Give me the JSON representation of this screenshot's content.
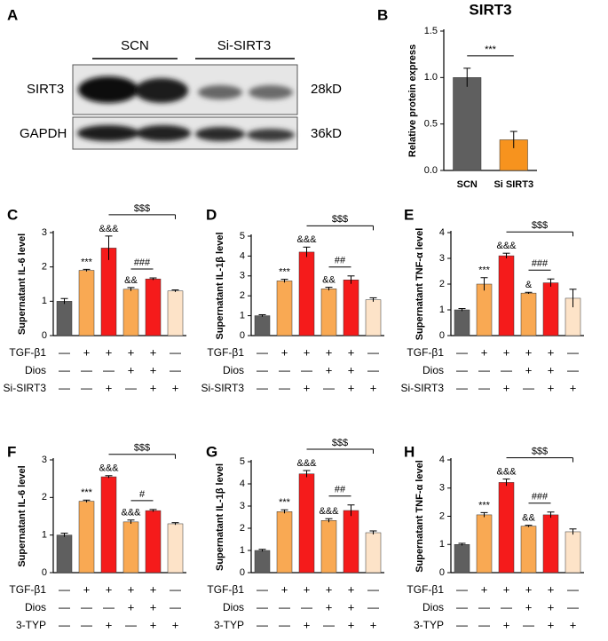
{
  "blot": {
    "panel": "A",
    "groups": [
      "SCN",
      "Si-SIRT3"
    ],
    "proteins": [
      {
        "name": "SIRT3",
        "size": "28kD"
      },
      {
        "name": "GAPDH",
        "size": "36kD"
      }
    ]
  },
  "chart_data": [
    {
      "type": "bar",
      "panel": "B",
      "title": "SIRT3",
      "y_label": "Relative protein express",
      "categories": [
        "SCN",
        "Si SIRT3"
      ],
      "values": [
        1.0,
        0.33
      ],
      "errors": [
        0.1,
        0.09
      ],
      "colors": [
        "#5f5f5f",
        "#f7931e"
      ],
      "ylim": [
        0,
        1.5
      ],
      "yticks": [
        {
          "value": 0,
          "label": "0.0"
        },
        0.5,
        {
          "value": 1,
          "label": "1.0"
        },
        1.5
      ],
      "annotations": [
        "***"
      ]
    },
    {
      "type": "bar",
      "panel": "C",
      "y_label": "Supernatant IL-6 level",
      "values": [
        1.0,
        1.9,
        2.55,
        1.35,
        1.65,
        1.3
      ],
      "errors": [
        0.08,
        0.03,
        0.35,
        0.05,
        0.03,
        0.03
      ],
      "colors": [
        "#5f5f5f",
        "#f9a953",
        "#f51b1b",
        "#f9a953",
        "#f51b1b",
        "#fde3c8"
      ],
      "ylim": [
        0,
        3
      ],
      "yticks": [
        0,
        1,
        2,
        3
      ],
      "treatments": [
        {
          "label": "TGF-β1",
          "signs": [
            "—",
            "+",
            "+",
            "+",
            "+",
            "—"
          ]
        },
        {
          "label": "Dios",
          "signs": [
            "—",
            "—",
            "—",
            "+",
            "+",
            "—"
          ]
        },
        {
          "label": "Si-SIRT3",
          "signs": [
            "—",
            "—",
            "+",
            "—",
            "+",
            "+"
          ]
        }
      ],
      "annotations": [
        "***",
        "&&&",
        "&&",
        "###",
        "$$$"
      ]
    },
    {
      "type": "bar",
      "panel": "D",
      "y_label": "Supernatant IL-1β level",
      "values": [
        1.0,
        2.75,
        4.2,
        2.35,
        2.8,
        1.8
      ],
      "errors": [
        0.05,
        0.08,
        0.25,
        0.08,
        0.2,
        0.1
      ],
      "colors": [
        "#5f5f5f",
        "#f9a953",
        "#f51b1b",
        "#f9a953",
        "#f51b1b",
        "#fde3c8"
      ],
      "ylim": [
        0,
        5
      ],
      "yticks": [
        0,
        1,
        2,
        3,
        4,
        5
      ],
      "treatments": [
        {
          "label": "TGF-β1",
          "signs": [
            "—",
            "+",
            "+",
            "+",
            "+",
            "—"
          ]
        },
        {
          "label": "Dios",
          "signs": [
            "—",
            "—",
            "—",
            "+",
            "+",
            "—"
          ]
        },
        {
          "label": "Si-SIRT3",
          "signs": [
            "—",
            "—",
            "+",
            "—",
            "+",
            "+"
          ]
        }
      ],
      "annotations": [
        "***",
        "&&&",
        "&&",
        "##",
        "$$$"
      ]
    },
    {
      "type": "bar",
      "panel": "E",
      "y_label": "Supernatant TNF-α level",
      "values": [
        1.0,
        2.0,
        3.1,
        1.65,
        2.05,
        1.45
      ],
      "errors": [
        0.05,
        0.25,
        0.1,
        0.03,
        0.15,
        0.35
      ],
      "colors": [
        "#5f5f5f",
        "#f9a953",
        "#f51b1b",
        "#f9a953",
        "#f51b1b",
        "#fde3c8"
      ],
      "ylim": [
        0,
        4
      ],
      "yticks": [
        0,
        1,
        2,
        3,
        4
      ],
      "treatments": [
        {
          "label": "TGF-β1",
          "signs": [
            "—",
            "+",
            "+",
            "+",
            "+",
            "—"
          ]
        },
        {
          "label": "Dios",
          "signs": [
            "—",
            "—",
            "—",
            "+",
            "+",
            "—"
          ]
        },
        {
          "label": "Si-SIRT3",
          "signs": [
            "—",
            "—",
            "+",
            "—",
            "+",
            "+"
          ]
        }
      ],
      "annotations": [
        "***",
        "&&&",
        "&",
        "###",
        "$$$"
      ]
    },
    {
      "type": "bar",
      "panel": "F",
      "y_label": "Supernatant IL-6 level",
      "values": [
        1.0,
        1.9,
        2.55,
        1.35,
        1.65,
        1.3
      ],
      "errors": [
        0.05,
        0.03,
        0.03,
        0.05,
        0.03,
        0.03
      ],
      "colors": [
        "#5f5f5f",
        "#f9a953",
        "#f51b1b",
        "#f9a953",
        "#f51b1b",
        "#fde3c8"
      ],
      "ylim": [
        0,
        3
      ],
      "yticks": [
        0,
        1,
        2,
        3
      ],
      "treatments": [
        {
          "label": "TGF-β1",
          "signs": [
            "—",
            "+",
            "+",
            "+",
            "+",
            "—"
          ]
        },
        {
          "label": "Dios",
          "signs": [
            "—",
            "—",
            "—",
            "+",
            "+",
            "—"
          ]
        },
        {
          "label": "3-TYP",
          "signs": [
            "—",
            "—",
            "+",
            "—",
            "+",
            "+"
          ]
        }
      ],
      "annotations": [
        "***",
        "&&&",
        "&&&",
        "#",
        "$$$"
      ]
    },
    {
      "type": "bar",
      "panel": "G",
      "y_label": "Supernatant IL-1β level",
      "values": [
        1.0,
        2.75,
        4.45,
        2.35,
        2.8,
        1.8
      ],
      "errors": [
        0.05,
        0.08,
        0.15,
        0.08,
        0.25,
        0.08
      ],
      "colors": [
        "#5f5f5f",
        "#f9a953",
        "#f51b1b",
        "#f9a953",
        "#f51b1b",
        "#fde3c8"
      ],
      "ylim": [
        0,
        5
      ],
      "yticks": [
        0,
        1,
        2,
        3,
        4,
        5
      ],
      "treatments": [
        {
          "label": "TGF-β1",
          "signs": [
            "—",
            "+",
            "+",
            "+",
            "+",
            "—"
          ]
        },
        {
          "label": "Dios",
          "signs": [
            "—",
            "—",
            "—",
            "+",
            "+",
            "—"
          ]
        },
        {
          "label": "3-TYP",
          "signs": [
            "—",
            "—",
            "+",
            "—",
            "+",
            "+"
          ]
        }
      ],
      "annotations": [
        "***",
        "&&&",
        "&&&",
        "##",
        "$$$"
      ]
    },
    {
      "type": "bar",
      "panel": "H",
      "y_label": "Supernatant TNF-α level",
      "values": [
        1.0,
        2.05,
        3.2,
        1.65,
        2.05,
        1.45
      ],
      "errors": [
        0.04,
        0.08,
        0.12,
        0.03,
        0.1,
        0.1
      ],
      "colors": [
        "#5f5f5f",
        "#f9a953",
        "#f51b1b",
        "#f9a953",
        "#f51b1b",
        "#fde3c8"
      ],
      "ylim": [
        0,
        4
      ],
      "yticks": [
        0,
        1,
        2,
        3,
        4
      ],
      "treatments": [
        {
          "label": "TGF-β1",
          "signs": [
            "—",
            "+",
            "+",
            "+",
            "+",
            "—"
          ]
        },
        {
          "label": "Dios",
          "signs": [
            "—",
            "—",
            "—",
            "+",
            "+",
            "—"
          ]
        },
        {
          "label": "3-TYP",
          "signs": [
            "—",
            "—",
            "+",
            "—",
            "+",
            "+"
          ]
        }
      ],
      "annotations": [
        "***",
        "&&&",
        "&&",
        "###",
        "$$$"
      ]
    }
  ]
}
